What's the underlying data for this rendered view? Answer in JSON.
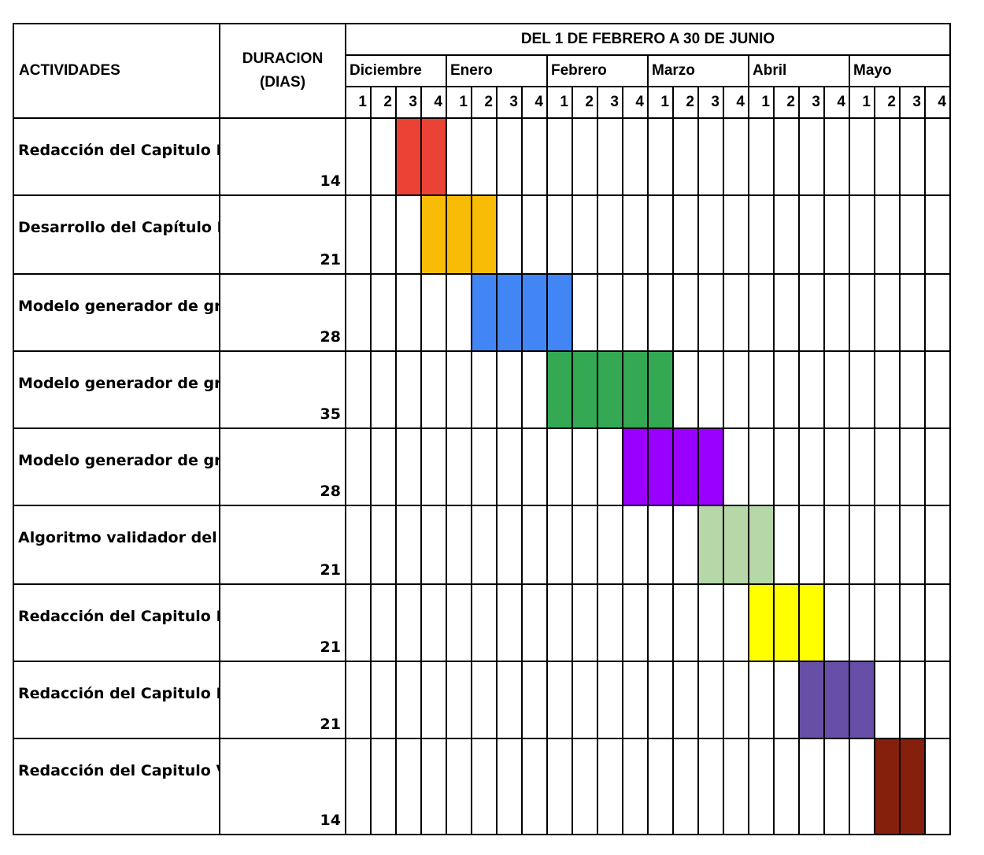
{
  "chart_data": {
    "type": "table",
    "title": "DEL 1 DE FEBRERO A 30 DE JUNIO",
    "header": {
      "activities": "ACTIVIDADES",
      "duration_line1": "DURACION",
      "duration_line2": "(DIAS)"
    },
    "months": [
      "Diciembre",
      "Enero",
      "Febrero",
      "Marzo",
      "Abril",
      "Mayo"
    ],
    "weeks": [
      "1",
      "2",
      "3",
      "4"
    ],
    "tasks": [
      {
        "name": "Redacción del Capitulo II\nMarco Teórico",
        "duration": "14",
        "start_week": 3,
        "num_weeks": 2,
        "color": "#EA4335"
      },
      {
        "name": "Desarrollo del Capítulo III\nMarco Aplicativo",
        "duration": "21",
        "start_week": 4,
        "num_weeks": 3,
        "color": "#F9BC06"
      },
      {
        "name": "Modelo generador de\ngrafos DAG",
        "duration": "28",
        "start_week": 6,
        "num_weeks": 4,
        "color": "#4285F4"
      },
      {
        "name": "Modelo generador\nde grafos Bipartitos",
        "duration": "35",
        "start_week": 9,
        "num_weeks": 5,
        "color": "#34A853"
      },
      {
        "name": "Modelo generador\nde grafos completos",
        "duration": "28",
        "start_week": 12,
        "num_weeks": 4,
        "color": "#9900FF"
      },
      {
        "name": "Algoritmo validador\ndel modelo",
        "duration": "21",
        "start_week": 15,
        "num_weeks": 3,
        "color": "#B6D7A8"
      },
      {
        "name": "Redacción del Capitulo III\nMarco Aplicativo",
        "duration": "21",
        "start_week": 17,
        "num_weeks": 3,
        "color": "#FFFF00"
      },
      {
        "name": "Redacción del Capitulo IV\nEstado de la Hipótesis",
        "duration": "21",
        "start_week": 19,
        "num_weeks": 3,
        "color": "#674EA7"
      },
      {
        "name": "Redacción del Capitulo V\nConclusiones y\nRecomendaciones",
        "duration": "14",
        "start_week": 22,
        "num_weeks": 2,
        "color": "#85200C"
      }
    ]
  }
}
